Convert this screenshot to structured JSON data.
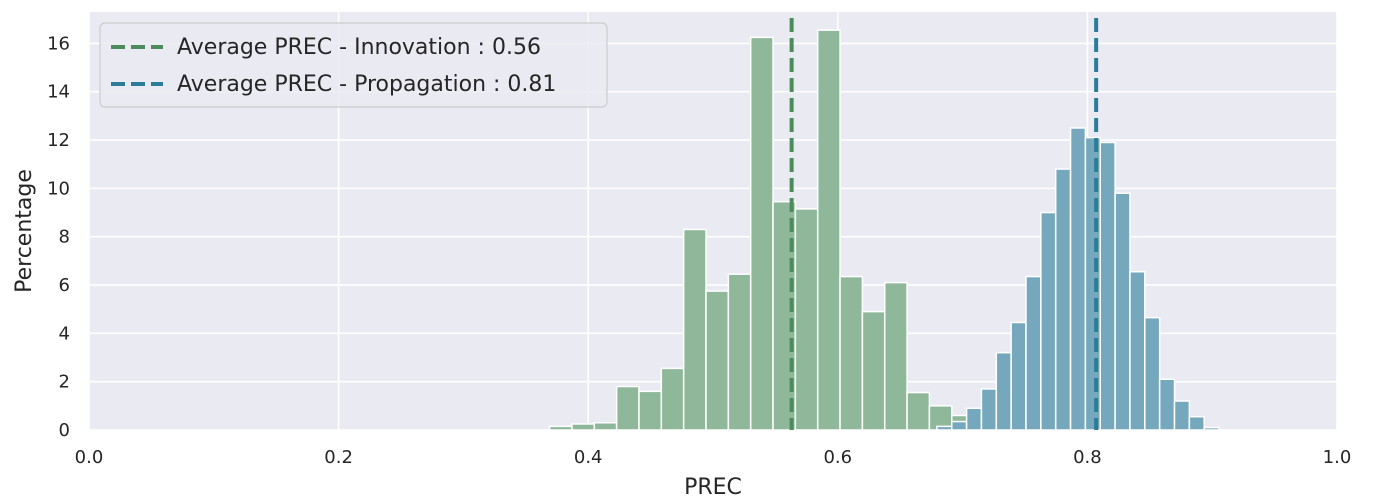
{
  "chart_data": {
    "type": "bar",
    "title": "",
    "xlabel": "PREC",
    "ylabel": "Percentage",
    "xlim": [
      0.0,
      1.0
    ],
    "ylim": [
      0,
      17.3
    ],
    "xticks": [
      0.0,
      0.2,
      0.4,
      0.6,
      0.8,
      1.0
    ],
    "xtick_labels": [
      "0.0",
      "0.2",
      "0.4",
      "0.6",
      "0.8",
      "1.0"
    ],
    "yticks": [
      0,
      2,
      4,
      6,
      8,
      10,
      12,
      14,
      16
    ],
    "ytick_labels": [
      "0",
      "2",
      "4",
      "6",
      "8",
      "10",
      "12",
      "14",
      "16"
    ],
    "grid": true,
    "legend_position": "top-left",
    "series": [
      {
        "color": "#8fb89b",
        "bin_width": 0.0179,
        "bins": [
          [
            0.3691,
            0.15
          ],
          [
            0.387,
            0.25
          ],
          [
            0.4049,
            0.3
          ],
          [
            0.4228,
            1.8
          ],
          [
            0.4407,
            1.6
          ],
          [
            0.4586,
            2.55
          ],
          [
            0.4765,
            8.3
          ],
          [
            0.4944,
            5.75
          ],
          [
            0.5123,
            6.45
          ],
          [
            0.5302,
            16.25
          ],
          [
            0.5481,
            9.45
          ],
          [
            0.566,
            9.15
          ],
          [
            0.5839,
            16.55
          ],
          [
            0.6018,
            6.35
          ],
          [
            0.6197,
            4.9
          ],
          [
            0.6376,
            6.1
          ],
          [
            0.6555,
            1.55
          ],
          [
            0.6734,
            1.0
          ],
          [
            0.6913,
            0.6
          ],
          [
            0.7092,
            0.1
          ]
        ]
      },
      {
        "color": "#76a8bd",
        "bin_width": 0.0119,
        "bins": [
          [
            0.6794,
            0.15
          ],
          [
            0.6913,
            0.35
          ],
          [
            0.7032,
            0.9
          ],
          [
            0.7151,
            1.7
          ],
          [
            0.727,
            3.2
          ],
          [
            0.7389,
            4.45
          ],
          [
            0.7508,
            6.35
          ],
          [
            0.7627,
            9.0
          ],
          [
            0.7746,
            10.8
          ],
          [
            0.7865,
            12.5
          ],
          [
            0.7984,
            12.1
          ],
          [
            0.8103,
            11.9
          ],
          [
            0.8222,
            9.8
          ],
          [
            0.8341,
            6.55
          ],
          [
            0.846,
            4.65
          ],
          [
            0.8579,
            2.1
          ],
          [
            0.8698,
            1.2
          ],
          [
            0.8817,
            0.55
          ],
          [
            0.8936,
            0.1
          ]
        ]
      }
    ],
    "reference_lines": [
      {
        "label": "Average PREC - Innovation : 0.56",
        "x": 0.563,
        "color": "#4b8b5c",
        "style": "dashed"
      },
      {
        "label": "Average PREC - Propagation : 0.81",
        "x": 0.807,
        "color": "#2a7c98",
        "style": "dashed"
      }
    ]
  }
}
